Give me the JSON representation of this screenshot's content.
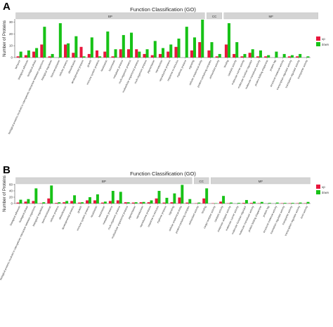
{
  "panels": {
    "A": "A",
    "B": "B"
  },
  "colors": {
    "up": "#e8173d",
    "down": "#17c217",
    "strip": "#d4d4d4",
    "strip_border": "#bdbdbd"
  },
  "chart_data": [
    {
      "type": "bar",
      "panel": "A",
      "title": "Function Classification (GO)",
      "ylabel": "Number of Proteins",
      "ylim": [
        0,
        32
      ],
      "yticks": [
        0,
        10,
        20,
        30
      ],
      "legend_position": "right",
      "legend": [
        "up",
        "down"
      ],
      "groups": [
        {
          "label": "BP",
          "start": 0,
          "end": 23
        },
        {
          "label": "CC",
          "start": 24,
          "end": 25
        },
        {
          "label": "MF",
          "start": 26,
          "end": 37
        }
      ],
      "categories": [
        "behavior",
        "biological adhesion",
        "biological phase",
        "biological process involved in interspecies interaction between organisms",
        "biological regulation",
        "biomineralization",
        "cellular process",
        "detoxification",
        "developmental process",
        "growth",
        "immune system process",
        "localization",
        "locomotion",
        "metabolic process",
        "multi-organism process",
        "multicellular organismal process",
        "multi-organism process",
        "pigmentation",
        "reproduction",
        "reproductive process",
        "response to stimulus",
        "rhythmic process",
        "signaling",
        "cellular anatomical entity",
        "protein-containing complex",
        "antioxidant activity",
        "binding",
        "catalytic activity",
        "molecular carrier activity",
        "molecular function regulator",
        "molecular transducer activity",
        "protein folding chaperone",
        "protein tag",
        "structural molecule activity",
        "transcription regulator activity",
        "translation regulator activity",
        "transporter activity"
      ],
      "series": [
        {
          "name": "up",
          "values": [
            1,
            2,
            5,
            11,
            1,
            0,
            11,
            4,
            9,
            3,
            6,
            5,
            1,
            7,
            7,
            7,
            3,
            2,
            3,
            5,
            9,
            0,
            6,
            13,
            6,
            1,
            11,
            3,
            1,
            4,
            1,
            1,
            0,
            0,
            1,
            1,
            0
          ]
        },
        {
          "name": "down",
          "values": [
            5,
            6,
            8,
            26,
            3,
            29,
            12,
            18,
            1,
            17,
            1,
            22,
            7,
            19,
            21,
            5,
            7,
            14,
            8,
            11,
            16,
            26,
            17,
            32,
            13,
            3,
            29,
            13,
            3,
            7,
            6,
            2,
            5,
            3,
            2,
            3,
            1
          ]
        }
      ]
    },
    {
      "type": "bar",
      "panel": "B",
      "title": "Function Classification (GO)",
      "ylabel": "Number of Proteins",
      "ylim": [
        0,
        60
      ],
      "yticks": [
        0,
        20,
        40,
        60
      ],
      "legend_position": "right",
      "legend": [
        "up",
        "down"
      ],
      "groups": [
        {
          "label": "BP",
          "start": 0,
          "end": 22
        },
        {
          "label": "CC",
          "start": 23,
          "end": 24
        },
        {
          "label": "MF",
          "start": 25,
          "end": 37
        }
      ],
      "categories": [
        "biological adhesion",
        "biological phase",
        "biological process involved in interspecies interaction between organisms",
        "biological regulation",
        "biomineralization",
        "cellular process",
        "detoxification",
        "developmental process",
        "growth",
        "immune system process",
        "localization",
        "locomotion",
        "metabolic process",
        "multi-organism process",
        "multicellular organismal process",
        "pigmentation",
        "reproduction",
        "reproductive process",
        "response to stimulus",
        "rhythmic process",
        "signaling",
        "cellular anatomical entity",
        "protein-containing complex",
        "antioxidant activity",
        "binding",
        "cargo receptor activity",
        "catalytic activity",
        "molecular adaptor activity",
        "molecular carrier activity",
        "molecular function regulator",
        "molecular transducer activity",
        "protein folding chaperone",
        "protein tag",
        "structural molecule activity",
        "translation regulator activity",
        "transporter activity",
        "transcription regulator activity",
        "toxin activity"
      ],
      "series": [
        {
          "name": "up",
          "values": [
            3,
            6,
            8,
            1,
            16,
            2,
            4,
            8,
            3,
            10,
            10,
            3,
            8,
            10,
            4,
            3,
            4,
            4,
            16,
            3,
            4,
            19,
            3,
            1,
            16,
            1,
            6,
            1,
            0,
            2,
            2,
            1,
            0,
            0,
            1,
            1,
            1,
            1
          ]
        },
        {
          "name": "down",
          "values": [
            12,
            14,
            48,
            4,
            57,
            4,
            8,
            26,
            4,
            20,
            29,
            6,
            40,
            37,
            4,
            4,
            5,
            10,
            40,
            18,
            32,
            59,
            14,
            3,
            48,
            1,
            24,
            3,
            2,
            11,
            6,
            5,
            2,
            3,
            2,
            2,
            3,
            5
          ]
        }
      ]
    }
  ]
}
